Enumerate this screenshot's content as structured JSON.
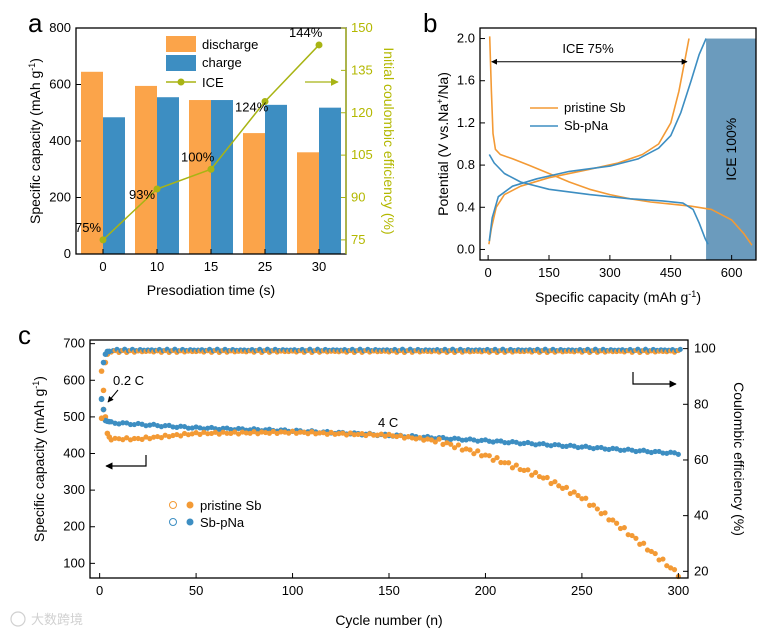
{
  "colors": {
    "orange": "#fba44a",
    "blue": "#3d8ec2",
    "olive": "#a8b414",
    "olive_text": "#b3b800",
    "dark_orange": "#f39a35",
    "ice_fill": "#6b9bbd"
  },
  "watermark": "大数跨境",
  "chart_data": [
    {
      "id": "a",
      "type": "bar",
      "panel_label": "a",
      "xlabel": "Presodiation time (s)",
      "ylabel": "Specific capacity (mAh g-1)",
      "ylabel_right": "Initial coulombic efficiency (%)",
      "categories": [
        "0",
        "10",
        "15",
        "25",
        "30"
      ],
      "series": [
        {
          "name": "discharge",
          "values": [
            645,
            595,
            545,
            428,
            360
          ]
        },
        {
          "name": "charge",
          "values": [
            484,
            555,
            545,
            528,
            518
          ]
        }
      ],
      "ice": {
        "name": "ICE",
        "values": [
          75,
          93,
          100,
          124,
          144
        ],
        "labels": [
          "75%",
          "93%",
          "100%",
          "124%",
          "144%"
        ]
      },
      "ylim": [
        0,
        800
      ],
      "yticks": [
        "0",
        "200",
        "400",
        "600",
        "800"
      ],
      "ylim_right": [
        70,
        150
      ],
      "yticks_right": [
        "75",
        "90",
        "105",
        "120",
        "135",
        "150"
      ]
    },
    {
      "id": "b",
      "type": "line",
      "panel_label": "b",
      "xlabel": "Specific capacity (mAh g-1)",
      "ylabel": "Potential (V vs.Na+/Na)",
      "xlim": [
        -20,
        660
      ],
      "ylim": [
        -0.1,
        2.1
      ],
      "xticks": [
        "0",
        "150",
        "300",
        "450",
        "600"
      ],
      "yticks": [
        "0.0",
        "0.4",
        "0.8",
        "1.2",
        "1.6",
        "2.0"
      ],
      "series": [
        {
          "name": "pristine Sb",
          "discharge": [
            [
              4,
              2.02
            ],
            [
              8,
              1.5
            ],
            [
              12,
              1.1
            ],
            [
              18,
              0.95
            ],
            [
              30,
              0.9
            ],
            [
              60,
              0.86
            ],
            [
              100,
              0.8
            ],
            [
              150,
              0.72
            ],
            [
              200,
              0.64
            ],
            [
              250,
              0.57
            ],
            [
              300,
              0.52
            ],
            [
              350,
              0.48
            ],
            [
              400,
              0.45
            ],
            [
              450,
              0.43
            ],
            [
              500,
              0.41
            ],
            [
              550,
              0.38
            ],
            [
              600,
              0.28
            ],
            [
              630,
              0.15
            ],
            [
              650,
              0.04
            ]
          ],
          "charge": [
            [
              2,
              0.05
            ],
            [
              8,
              0.2
            ],
            [
              20,
              0.4
            ],
            [
              40,
              0.52
            ],
            [
              80,
              0.6
            ],
            [
              150,
              0.68
            ],
            [
              250,
              0.76
            ],
            [
              320,
              0.82
            ],
            [
              380,
              0.9
            ],
            [
              420,
              1.0
            ],
            [
              450,
              1.2
            ],
            [
              470,
              1.5
            ],
            [
              485,
              1.8
            ],
            [
              495,
              2.0
            ]
          ]
        },
        {
          "name": "Sb-pNa",
          "discharge": [
            [
              3,
              0.9
            ],
            [
              15,
              0.82
            ],
            [
              40,
              0.72
            ],
            [
              80,
              0.64
            ],
            [
              150,
              0.57
            ],
            [
              250,
              0.52
            ],
            [
              350,
              0.48
            ],
            [
              430,
              0.46
            ],
            [
              480,
              0.44
            ],
            [
              505,
              0.38
            ],
            [
              520,
              0.25
            ],
            [
              535,
              0.1
            ],
            [
              542,
              0.05
            ]
          ],
          "charge": [
            [
              3,
              0.08
            ],
            [
              10,
              0.3
            ],
            [
              25,
              0.5
            ],
            [
              60,
              0.6
            ],
            [
              120,
              0.67
            ],
            [
              200,
              0.74
            ],
            [
              300,
              0.79
            ],
            [
              370,
              0.86
            ],
            [
              420,
              0.96
            ],
            [
              450,
              1.08
            ],
            [
              475,
              1.3
            ],
            [
              500,
              1.6
            ],
            [
              520,
              1.85
            ],
            [
              537,
              2.0
            ]
          ]
        }
      ],
      "ice_box": {
        "label": "ICE 100%",
        "x_start": 537,
        "x_end": 660,
        "y_top": 2.0
      },
      "annotation": "ICE 75%",
      "arrow_x": [
        4,
        495
      ],
      "arrow_y": 1.78
    },
    {
      "id": "c",
      "type": "scatter",
      "panel_label": "c",
      "xlabel": "Cycle number (n)",
      "ylabel": "Specific capacity (mAh g-1)",
      "ylabel_right": "Coulombic efficiency (%)",
      "xlim": [
        -5,
        305
      ],
      "ylim": [
        60,
        710
      ],
      "ylim_right": [
        17.6,
        103.1
      ],
      "xticks": [
        "0",
        "50",
        "100",
        "150",
        "200",
        "250",
        "300"
      ],
      "yticks": [
        "100",
        "200",
        "300",
        "400",
        "500",
        "600",
        "700"
      ],
      "yticks_right": [
        "20",
        "40",
        "60",
        "80",
        "100"
      ],
      "legend": [
        "pristine Sb",
        "Sb-pNa"
      ],
      "annotations": {
        "low_rate": "0.2 C",
        "high_rate": "4 C"
      },
      "series": [
        {
          "name": "pristine Sb",
          "capacity_keypoints": [
            [
              6,
              440
            ],
            [
              20,
              440
            ],
            [
              50,
              455
            ],
            [
              100,
              458
            ],
            [
              150,
              450
            ],
            [
              175,
              435
            ],
            [
              200,
              395
            ],
            [
              230,
              335
            ],
            [
              250,
              280
            ],
            [
              270,
              200
            ],
            [
              290,
              115
            ],
            [
              300,
              70
            ]
          ],
          "ce_level": 99
        },
        {
          "name": "Sb-pNa",
          "capacity_keypoints": [
            [
              4,
              485
            ],
            [
              50,
              470
            ],
            [
              100,
              462
            ],
            [
              150,
              450
            ],
            [
              200,
              435
            ],
            [
              250,
              418
            ],
            [
              300,
              400
            ]
          ],
          "ce_level": 99.5
        }
      ],
      "initial_points": {
        "pristine_capacity": [
          [
            1,
            625
          ],
          [
            2,
            520
          ],
          [
            3,
            500
          ],
          [
            4,
            455
          ],
          [
            5,
            445
          ]
        ],
        "sbpna_capacity": [
          [
            1,
            548
          ],
          [
            2,
            520
          ],
          [
            3,
            490
          ],
          [
            4,
            488
          ],
          [
            5,
            487
          ]
        ],
        "pristine_ce": [
          [
            1,
            75
          ],
          [
            2,
            85
          ],
          [
            3,
            95
          ],
          [
            4,
            98
          ],
          [
            5,
            99
          ]
        ],
        "sbpna_ce": [
          [
            1,
            82
          ],
          [
            2,
            95
          ],
          [
            3,
            98
          ],
          [
            4,
            99
          ],
          [
            5,
            99
          ]
        ]
      }
    }
  ]
}
